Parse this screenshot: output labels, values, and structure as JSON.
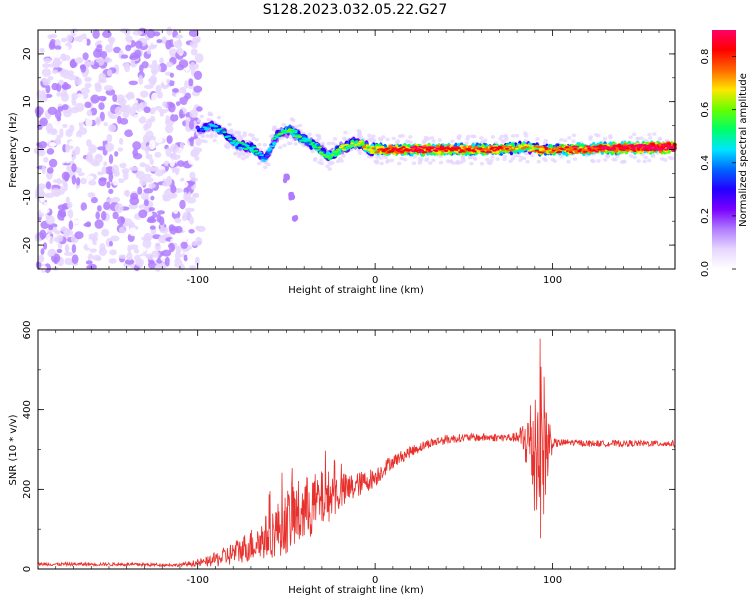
{
  "title": "S128.2023.032.05.22.G27",
  "chart_data": [
    {
      "type": "heatmap",
      "xlabel": "Height of straight line (km)",
      "ylabel": "Frequency (Hz)",
      "xlim": [
        -190,
        169
      ],
      "ylim": [
        -25,
        25
      ],
      "x_ticks": [
        -100,
        0,
        100
      ],
      "x_tick_labels": [
        "-100",
        "0",
        "100"
      ],
      "y_ticks": [
        -20,
        -10,
        0,
        10,
        20
      ],
      "y_tick_labels": [
        "-20",
        "-10",
        "0",
        "10",
        "20"
      ],
      "colorbar": {
        "label": "Normalized spectral amplitude",
        "range": [
          0,
          0.9
        ],
        "ticks": [
          0.0,
          0.2,
          0.4,
          0.6,
          0.8
        ],
        "tick_labels": [
          "0.0",
          "0.2",
          "0.4",
          "0.6",
          "0.8"
        ],
        "colormap": [
          "#ffffff",
          "#e6d6ff",
          "#b07cff",
          "#7a00ff",
          "#2200ff",
          "#0066ff",
          "#00e5ff",
          "#00ff66",
          "#66ff00",
          "#ffe600",
          "#ff6600",
          "#ff0000",
          "#ff0066"
        ]
      },
      "signal_track": {
        "noise_region_x": [
          -190,
          -100
        ],
        "trace": [
          {
            "x": -100,
            "f": 4.0,
            "a": 0.2
          },
          {
            "x": -92,
            "f": 5.0,
            "a": 0.3
          },
          {
            "x": -85,
            "f": 3.5,
            "a": 0.35
          },
          {
            "x": -78,
            "f": 1.0,
            "a": 0.35
          },
          {
            "x": -70,
            "f": 0.5,
            "a": 0.4
          },
          {
            "x": -62,
            "f": -2.0,
            "a": 0.3
          },
          {
            "x": -55,
            "f": 3.0,
            "a": 0.4
          },
          {
            "x": -48,
            "f": 4.0,
            "a": 0.45
          },
          {
            "x": -40,
            "f": 2.0,
            "a": 0.4
          },
          {
            "x": -33,
            "f": 0.5,
            "a": 0.4
          },
          {
            "x": -26,
            "f": -1.5,
            "a": 0.45
          },
          {
            "x": -18,
            "f": 0.5,
            "a": 0.5
          },
          {
            "x": -10,
            "f": 1.5,
            "a": 0.5
          },
          {
            "x": -2,
            "f": 0.0,
            "a": 0.6
          },
          {
            "x": 10,
            "f": 0.0,
            "a": 0.75
          },
          {
            "x": 30,
            "f": 0.0,
            "a": 0.75
          },
          {
            "x": 50,
            "f": 0.0,
            "a": 0.7
          },
          {
            "x": 70,
            "f": 0.0,
            "a": 0.7
          },
          {
            "x": 85,
            "f": 0.5,
            "a": 0.55
          },
          {
            "x": 92,
            "f": 0.0,
            "a": 0.65
          },
          {
            "x": 110,
            "f": 0.0,
            "a": 0.7
          },
          {
            "x": 130,
            "f": 0.2,
            "a": 0.75
          },
          {
            "x": 150,
            "f": 0.4,
            "a": 0.8
          },
          {
            "x": 169,
            "f": 0.5,
            "a": 0.85
          }
        ],
        "branch": [
          {
            "x": -50,
            "f": -6.0
          },
          {
            "x": -47,
            "f": -10.0
          },
          {
            "x": -45,
            "f": -14.0
          }
        ]
      }
    },
    {
      "type": "line",
      "xlabel": "Height of straight line (km)",
      "ylabel": "SNR (10 * v/v)",
      "xlim": [
        -190,
        169
      ],
      "ylim": [
        0,
        600
      ],
      "x_ticks": [
        -100,
        0,
        100
      ],
      "x_tick_labels": [
        "-100",
        "0",
        "100"
      ],
      "y_ticks": [
        0,
        200,
        400,
        600
      ],
      "y_tick_labels": [
        "0",
        "200",
        "400",
        "600"
      ],
      "line_color": "#e8302c",
      "series": [
        {
          "x": [
            -190,
            -150,
            -110,
            -95,
            -85,
            -75,
            -65,
            -55,
            -48,
            -42,
            -35,
            -28,
            -22,
            -15,
            -8,
            0,
            8,
            20,
            30,
            40,
            50,
            60,
            70,
            80,
            86,
            90,
            93,
            96,
            100,
            110,
            120,
            140,
            169
          ],
          "values": [
            12,
            12,
            10,
            18,
            30,
            50,
            70,
            100,
            125,
            140,
            160,
            180,
            190,
            200,
            215,
            230,
            265,
            295,
            315,
            325,
            330,
            330,
            330,
            330,
            320,
            300,
            330,
            310,
            315,
            318,
            315,
            315,
            315
          ],
          "spread": [
            4,
            4,
            4,
            12,
            25,
            35,
            50,
            70,
            85,
            90,
            80,
            70,
            55,
            40,
            30,
            25,
            18,
            14,
            12,
            12,
            10,
            10,
            10,
            12,
            80,
            200,
            260,
            160,
            12,
            8,
            8,
            8,
            8
          ]
        }
      ]
    }
  ]
}
